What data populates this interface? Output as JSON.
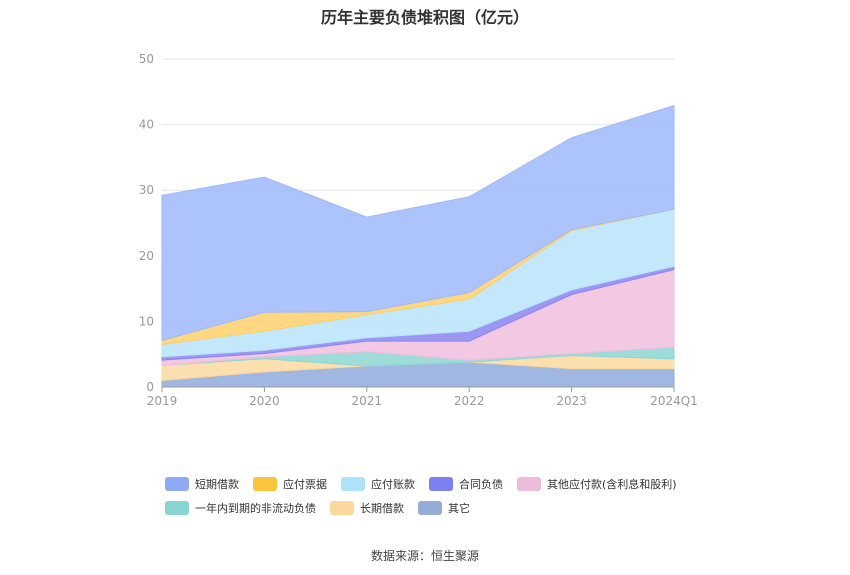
{
  "chart_data": {
    "type": "area",
    "stacked": true,
    "title": "历年主要负债堆积图（亿元）",
    "categories": [
      "2019",
      "2020",
      "2021",
      "2022",
      "2023",
      "2024Q1"
    ],
    "y_ticks": [
      "0",
      "10",
      "20",
      "30",
      "40",
      "50"
    ],
    "ylim": [
      0,
      50
    ],
    "grid": true,
    "legend_position": "bottom",
    "series": [
      {
        "name": "其它",
        "color": "#8faadc",
        "values": [
          1.0,
          2.3,
          3.2,
          3.8,
          2.8,
          2.8
        ]
      },
      {
        "name": "长期借款",
        "color": "#fcd9a0",
        "values": [
          2.3,
          2.0,
          0.0,
          0.0,
          2.0,
          1.5
        ]
      },
      {
        "name": "一年内到期的非流动负债",
        "color": "#8dd6d4",
        "values": [
          0.0,
          0.3,
          2.2,
          0.3,
          0.3,
          1.8
        ]
      },
      {
        "name": "其他应付款(含利息和股利)",
        "color": "#f0bede",
        "values": [
          0.8,
          0.5,
          1.6,
          2.9,
          9.0,
          11.8
        ]
      },
      {
        "name": "合同负债",
        "color": "#8a85f0",
        "values": [
          0.5,
          0.5,
          0.5,
          1.5,
          0.7,
          0.5
        ]
      },
      {
        "name": "应付账款",
        "color": "#b8e4fa",
        "values": [
          1.9,
          2.9,
          3.5,
          4.9,
          9.0,
          8.7
        ]
      },
      {
        "name": "应付票据",
        "color": "#fdd06b",
        "values": [
          0.6,
          2.9,
          0.5,
          1.0,
          0.2,
          0.0
        ]
      },
      {
        "name": "短期借款",
        "color": "#9fb9fa",
        "values": [
          22.1,
          20.6,
          14.4,
          14.6,
          14.0,
          15.8
        ]
      }
    ]
  },
  "legend": {
    "row1": [
      {
        "label": "短期借款",
        "color": "#8faaf5"
      },
      {
        "label": "应付票据",
        "color": "#fcc33c"
      },
      {
        "label": "应付账款",
        "color": "#aee2fb"
      },
      {
        "label": "合同负债",
        "color": "#7b7ff0"
      },
      {
        "label": "其他应付款(含利息和股利)",
        "color": "#eebbdd"
      }
    ],
    "row2": [
      {
        "label": "一年内到期的非流动负债",
        "color": "#86d5d2"
      },
      {
        "label": "长期借款",
        "color": "#fdd79c"
      },
      {
        "label": "其它",
        "color": "#94acd6"
      }
    ]
  },
  "source": "数据来源：恒生聚源"
}
